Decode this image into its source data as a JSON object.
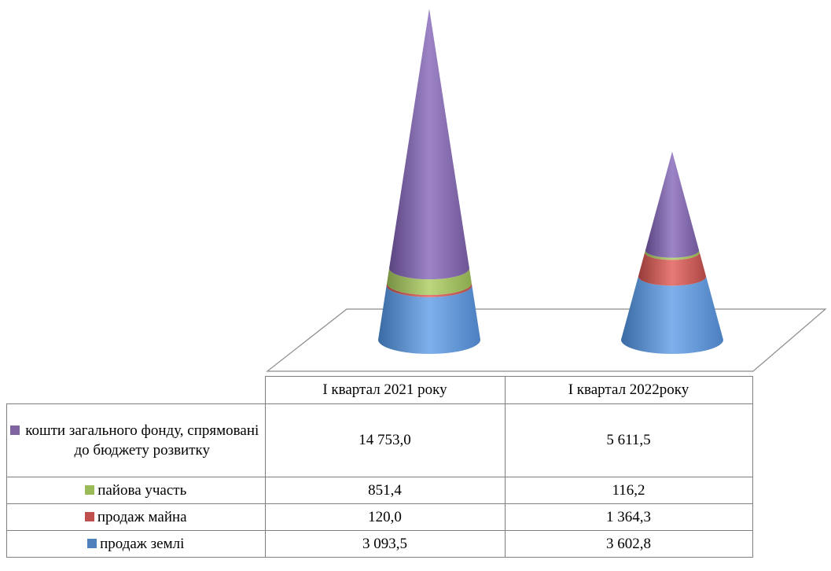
{
  "chart_data": {
    "type": "stacked-cone",
    "title": "",
    "xlabel": "",
    "ylabel": "",
    "categories": [
      "І квартал 2021 року",
      "І квартал 2022року"
    ],
    "series": [
      {
        "name": "кошти загального фонду, спрямовані до бюджету розвитку",
        "color": "#8064a2",
        "values": [
          14753.0,
          5611.5
        ],
        "labels": [
          "14 753,0",
          "5 611,5"
        ]
      },
      {
        "name": "пайова участь",
        "color": "#9bbb59",
        "values": [
          851.4,
          116.2
        ],
        "labels": [
          "851,4",
          "116,2"
        ]
      },
      {
        "name": "продаж майна",
        "color": "#c0504d",
        "values": [
          120.0,
          1364.3
        ],
        "labels": [
          "120,0",
          "1 364,3"
        ]
      },
      {
        "name": "продаж землі",
        "color": "#4f81bd",
        "values": [
          3093.5,
          3602.8
        ],
        "labels": [
          "3 093,5",
          "3 602,8"
        ]
      }
    ],
    "legend": "data-table",
    "grid": false
  }
}
